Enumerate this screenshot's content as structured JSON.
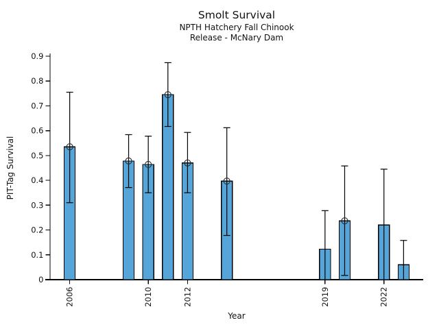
{
  "figure": {
    "background": "#ffffff"
  },
  "chart_data": {
    "type": "bar",
    "title": "Smolt Survival",
    "subtitle_line1": "NPTH Hatchery Fall Chinook",
    "subtitle_line2": "Release - McNary Dam",
    "xlabel": "Year",
    "ylabel": "PIT-Tag Survival",
    "xlim": [
      2005.0,
      2024.0
    ],
    "ylim": [
      0,
      0.9
    ],
    "x_ticks": [
      2006,
      2010,
      2012,
      2019,
      2022
    ],
    "y_ticks": [
      0,
      0.1,
      0.2,
      0.3,
      0.4,
      0.5,
      0.6,
      0.7,
      0.8,
      0.9
    ],
    "grid": false,
    "legend": "none",
    "bar_color": "#56A5D8",
    "bar_edge_color": "#000000",
    "error_color": "#000000",
    "marker_style": "open-circle",
    "bar_width_years": 0.56,
    "series": [
      {
        "year": 2006,
        "value": 0.535,
        "ci_low": 0.31,
        "ci_high": 0.755,
        "marker": true
      },
      {
        "year": 2009,
        "value": 0.478,
        "ci_low": 0.371,
        "ci_high": 0.584,
        "marker": true
      },
      {
        "year": 2010,
        "value": 0.464,
        "ci_low": 0.35,
        "ci_high": 0.578,
        "marker": true
      },
      {
        "year": 2011,
        "value": 0.745,
        "ci_low": 0.617,
        "ci_high": 0.874,
        "marker": true
      },
      {
        "year": 2012,
        "value": 0.47,
        "ci_low": 0.35,
        "ci_high": 0.593,
        "marker": true
      },
      {
        "year": 2014,
        "value": 0.397,
        "ci_low": 0.178,
        "ci_high": 0.612,
        "marker": true
      },
      {
        "year": 2019,
        "value": 0.123,
        "ci_low": 0.0,
        "ci_high": 0.278,
        "marker": false
      },
      {
        "year": 2020,
        "value": 0.237,
        "ci_low": 0.017,
        "ci_high": 0.458,
        "marker": true
      },
      {
        "year": 2022,
        "value": 0.22,
        "ci_low": 0.0,
        "ci_high": 0.445,
        "marker": false
      },
      {
        "year": 2023,
        "value": 0.06,
        "ci_low": 0.0,
        "ci_high": 0.158,
        "marker": false
      }
    ]
  }
}
